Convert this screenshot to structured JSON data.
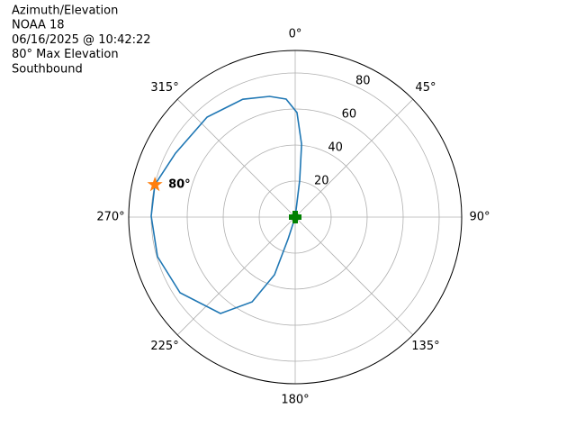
{
  "chart_data": {
    "type": "polar",
    "title_lines": [
      "Azimuth/Elevation",
      "NOAA 18",
      "06/16/2025 @ 10:42:22",
      "80° Max Elevation",
      "Southbound"
    ],
    "theta_direction": "clockwise",
    "theta_zero": "top",
    "thetaticks": [
      {
        "value": 0,
        "label": "0°"
      },
      {
        "value": 45,
        "label": "45°"
      },
      {
        "value": 90,
        "label": "90°"
      },
      {
        "value": 135,
        "label": "135°"
      },
      {
        "value": 180,
        "label": "180°"
      },
      {
        "value": 225,
        "label": "225°"
      },
      {
        "value": 270,
        "label": "270°"
      },
      {
        "value": 315,
        "label": "315°"
      }
    ],
    "rlim": [
      0,
      92.5
    ],
    "rticks": [
      20,
      40,
      60,
      80
    ],
    "grid": true,
    "series": [
      {
        "color": "#1f77b4",
        "azimuth": [
          0,
          7,
          5,
          1,
          355.6,
          348,
          336,
          318.6,
          298,
          283,
          270.4,
          254,
          236.7,
          217.8,
          207,
          199.8,
          198,
          0
        ],
        "values": [
          0,
          20.6,
          40.6,
          58,
          65.7,
          68.5,
          71.6,
          74,
          75.4,
          80,
          80,
          79.6,
          76.5,
          67.7,
          52.8,
          34,
          12.6,
          0
        ]
      }
    ],
    "start_point": {
      "azimuth": 0,
      "value": 0,
      "color": "#008000"
    },
    "max_point": {
      "azimuth": 283,
      "value": 80,
      "color": "#ff7f0e",
      "label": "80°"
    }
  }
}
